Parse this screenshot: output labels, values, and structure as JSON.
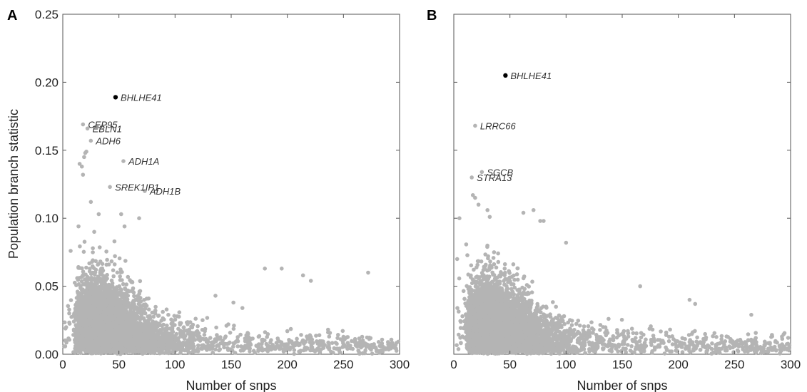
{
  "chart_data": [
    {
      "type": "scatter",
      "panel_label": "A",
      "xlabel": "Number of snps",
      "ylabel": "Population branch statistic",
      "xlim": [
        0,
        300
      ],
      "ylim": [
        0,
        0.25
      ],
      "xticks": [
        "0",
        "50",
        "100",
        "150",
        "200",
        "250",
        "300"
      ],
      "yticks": [
        "0.00",
        "0.05",
        "0.10",
        "0.15",
        "0.20",
        "0.25"
      ],
      "grid": false,
      "background_color": "#b4b4b4",
      "highlight_color": "#000000",
      "labeled_points": [
        {
          "label": "BHLHE41",
          "x": 47,
          "y": 0.189,
          "highlight": true
        },
        {
          "label": "CEP95",
          "x": 18,
          "y": 0.169,
          "highlight": false
        },
        {
          "label": "EBLN1",
          "x": 22,
          "y": 0.166,
          "highlight": false
        },
        {
          "label": "ADH6",
          "x": 25,
          "y": 0.157,
          "highlight": false
        },
        {
          "label": "ADH1A",
          "x": 54,
          "y": 0.142,
          "highlight": false
        },
        {
          "label": "SREK1IP1",
          "x": 42,
          "y": 0.123,
          "highlight": false
        },
        {
          "label": "ADH1B",
          "x": 73,
          "y": 0.12,
          "highlight": false
        }
      ],
      "outlier_points": [
        {
          "x": 20,
          "y": 0.148
        },
        {
          "x": 21,
          "y": 0.149
        },
        {
          "x": 19,
          "y": 0.145
        },
        {
          "x": 15,
          "y": 0.14
        },
        {
          "x": 18,
          "y": 0.132
        },
        {
          "x": 17,
          "y": 0.138
        },
        {
          "x": 25,
          "y": 0.112
        },
        {
          "x": 14,
          "y": 0.094
        },
        {
          "x": 32,
          "y": 0.103
        },
        {
          "x": 52,
          "y": 0.103
        },
        {
          "x": 55,
          "y": 0.094
        },
        {
          "x": 68,
          "y": 0.1
        },
        {
          "x": 7,
          "y": 0.076
        },
        {
          "x": 28,
          "y": 0.09
        },
        {
          "x": 46,
          "y": 0.083
        },
        {
          "x": 180,
          "y": 0.063
        },
        {
          "x": 195,
          "y": 0.063
        },
        {
          "x": 214,
          "y": 0.058
        },
        {
          "x": 221,
          "y": 0.054
        },
        {
          "x": 272,
          "y": 0.06
        },
        {
          "x": 136,
          "y": 0.043
        },
        {
          "x": 152,
          "y": 0.038
        },
        {
          "x": 160,
          "y": 0.034
        }
      ],
      "cloud_seed": 7
    },
    {
      "type": "scatter",
      "panel_label": "B",
      "xlabel": "Number of snps",
      "ylabel": "",
      "xlim": [
        0,
        300
      ],
      "ylim": [
        0,
        0.25
      ],
      "xticks": [
        "0",
        "50",
        "100",
        "150",
        "200",
        "250",
        "300"
      ],
      "yticks": [],
      "grid": false,
      "background_color": "#b4b4b4",
      "highlight_color": "#000000",
      "labeled_points": [
        {
          "label": "BHLHE41",
          "x": 46,
          "y": 0.205,
          "highlight": true
        },
        {
          "label": "LRRC66",
          "x": 19,
          "y": 0.168,
          "highlight": false
        },
        {
          "label": "SGCB",
          "x": 25,
          "y": 0.134,
          "highlight": false
        },
        {
          "label": "STRA13",
          "x": 16,
          "y": 0.13,
          "highlight": false
        }
      ],
      "outlier_points": [
        {
          "x": 17,
          "y": 0.117
        },
        {
          "x": 19,
          "y": 0.115
        },
        {
          "x": 22,
          "y": 0.11
        },
        {
          "x": 30,
          "y": 0.106
        },
        {
          "x": 32,
          "y": 0.101
        },
        {
          "x": 62,
          "y": 0.104
        },
        {
          "x": 71,
          "y": 0.106
        },
        {
          "x": 77,
          "y": 0.098
        },
        {
          "x": 80,
          "y": 0.098
        },
        {
          "x": 100,
          "y": 0.082
        },
        {
          "x": 5,
          "y": 0.1
        },
        {
          "x": 166,
          "y": 0.05
        },
        {
          "x": 210,
          "y": 0.04
        },
        {
          "x": 215,
          "y": 0.037
        },
        {
          "x": 265,
          "y": 0.029
        },
        {
          "x": 3,
          "y": 0.07
        }
      ],
      "cloud_seed": 13
    }
  ]
}
